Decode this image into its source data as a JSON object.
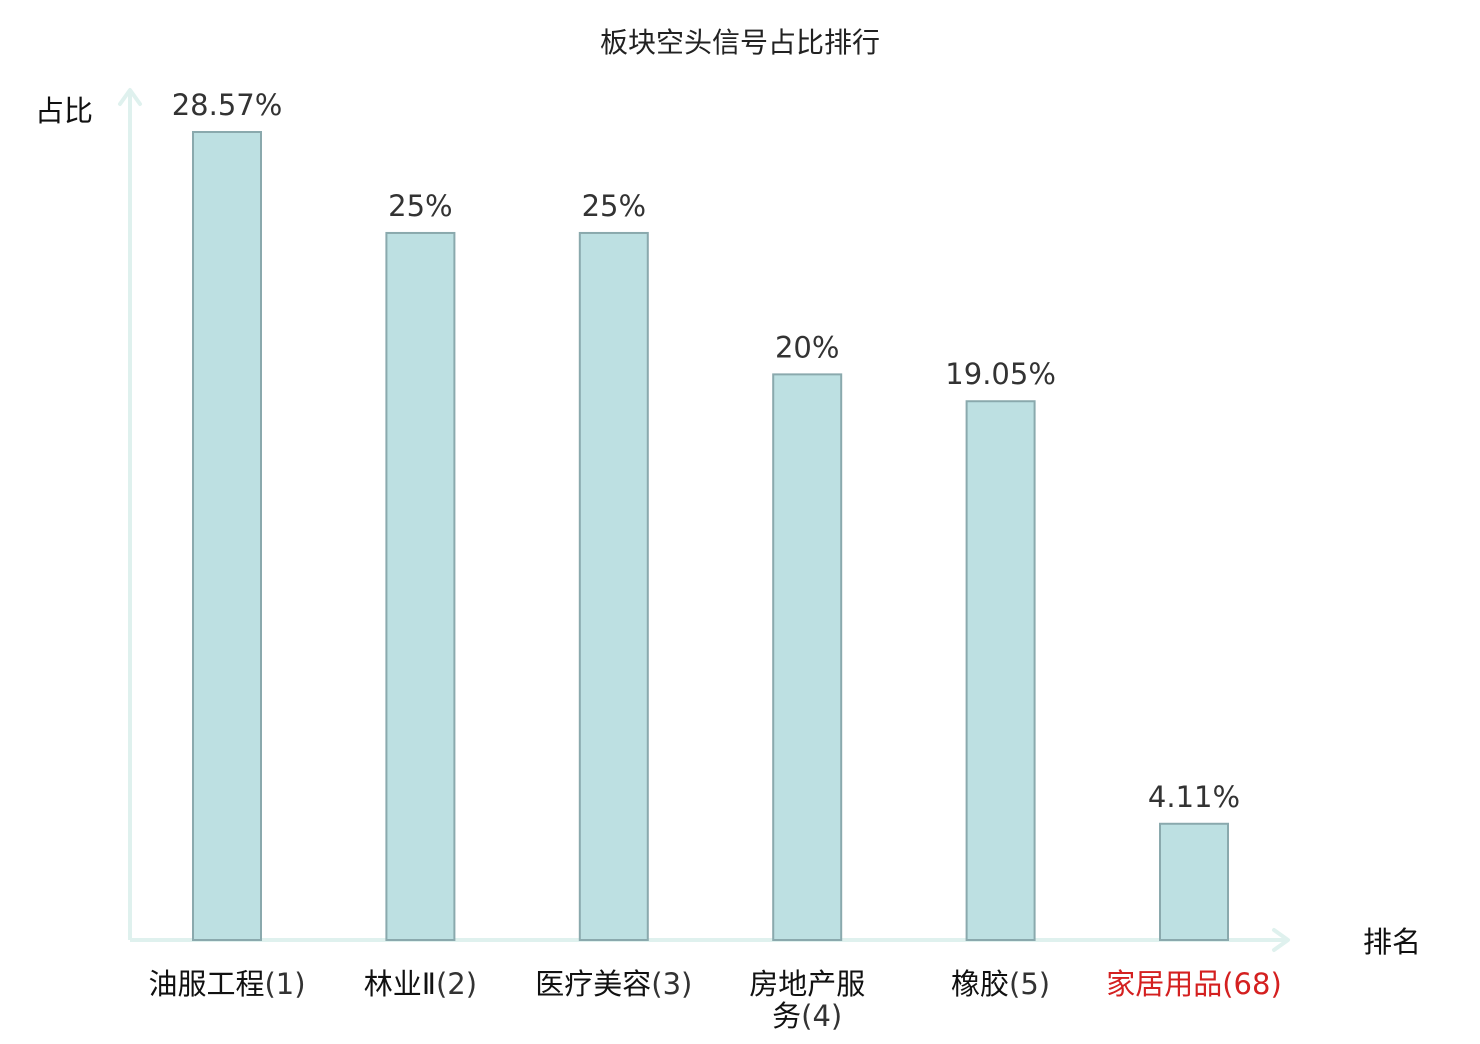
{
  "chart_data": {
    "type": "bar",
    "title": "板块空头信号占比排行",
    "ylabel": "占比",
    "xlabel": "排名",
    "ylim": [
      0,
      30
    ],
    "grid": false,
    "categories": [
      {
        "name": "油服工程",
        "rank": "(1)"
      },
      {
        "name": "林业Ⅱ",
        "rank": "(2)"
      },
      {
        "name": "医疗美容",
        "rank": "(3)"
      },
      {
        "name": "房地产服务",
        "rank": "(4)"
      },
      {
        "name": "橡胶",
        "rank": "(5)"
      },
      {
        "name": "家居用品",
        "rank": "(68)"
      }
    ],
    "values": [
      28.57,
      25,
      25,
      20,
      19.05,
      4.11
    ],
    "value_labels": [
      "28.57%",
      "25%",
      "25%",
      "20%",
      "19.05%",
      "4.11%"
    ],
    "highlight_index": 5,
    "colors": {
      "bar_fill": "#bde0e2",
      "bar_stroke": "#8aa9ad",
      "axis": "#dff1ee",
      "text": "#333333",
      "highlight_text": "#d42020"
    }
  }
}
